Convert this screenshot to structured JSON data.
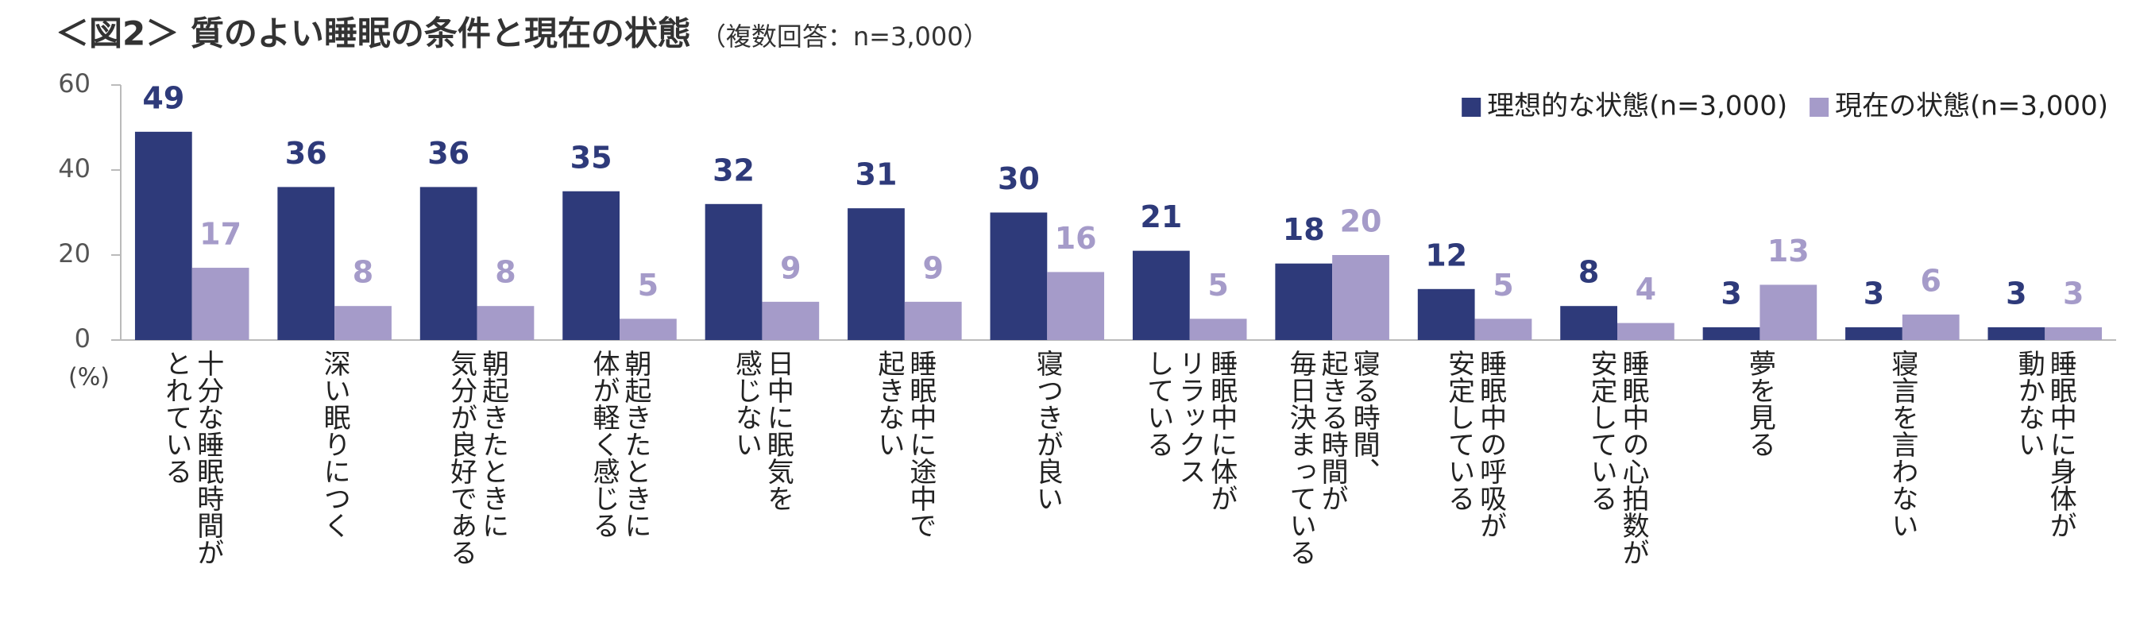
{
  "chart_data": {
    "type": "bar",
    "title": "＜図2＞ 質のよい睡眠の条件と現在の状態",
    "subtitle": "（複数回答：n=3,000）",
    "y_unit": "(%)",
    "categories": [
      "十分な睡眠時間が\nとれている",
      "深い眠りにつく",
      "朝起きたときに\n気分が良好である",
      "朝起きたときに\n体が軽く感じる",
      "日中に眠気を\n感じない",
      "睡眠中に途中で\n起きない",
      "寝つきが良い",
      "睡眠中に体が\nリラックス\nしている",
      "寝る時間、\n起きる時間が\n毎日決まっている",
      "睡眠中の呼吸が\n安定している",
      "睡眠中の心拍数が\n安定している",
      "夢を見る",
      "寝言を言わない",
      "睡眠中に身体が\n動かない"
    ],
    "series": [
      {
        "name": "理想的な状態(n=3,000)",
        "color": "#2e3a7a",
        "values": [
          49,
          36,
          36,
          35,
          32,
          31,
          30,
          21,
          18,
          12,
          8,
          3,
          3,
          3
        ]
      },
      {
        "name": "現在の状態(n=3,000)",
        "color": "#a59bc9",
        "values": [
          17,
          8,
          8,
          5,
          9,
          9,
          16,
          5,
          20,
          5,
          4,
          13,
          6,
          3
        ]
      }
    ],
    "ylim": [
      0,
      60
    ],
    "yticks": [
      0,
      20,
      40,
      60
    ],
    "legend": "upper right"
  }
}
